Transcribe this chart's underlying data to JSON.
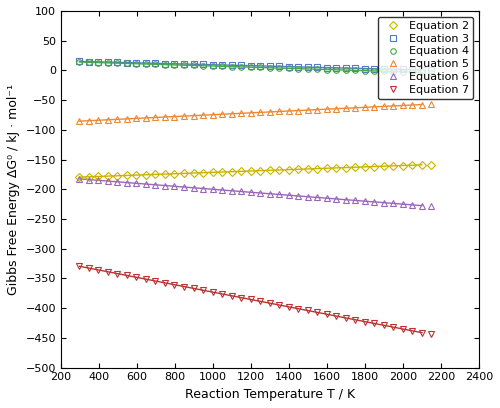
{
  "title": "",
  "xlabel": "Reaction Temperature T / K",
  "ylabel": "Gibbs Free Energy ΔG⁰ / kJ · mol⁻¹",
  "xlim": [
    200,
    2400
  ],
  "ylim": [
    -500,
    100
  ],
  "xticks": [
    200,
    400,
    600,
    800,
    1000,
    1200,
    1400,
    1600,
    1800,
    2000,
    2200,
    2400
  ],
  "yticks": [
    -500,
    -450,
    -400,
    -350,
    -300,
    -250,
    -200,
    -150,
    -100,
    -50,
    0,
    50,
    100
  ],
  "equations": [
    {
      "label": "Equation 2",
      "color": "#C8B400",
      "marker": "D",
      "line_color": "#C8B400",
      "slope": 0.0115,
      "intercept": -183
    },
    {
      "label": "Equation 3",
      "color": "#5577CC",
      "marker": "s",
      "line_color": "#5577CC",
      "slope": -0.008,
      "intercept": 17.5
    },
    {
      "label": "Equation 4",
      "color": "#44AA44",
      "marker": "o",
      "line_color": "#44AA44",
      "slope": -0.0097,
      "intercept": 17.0
    },
    {
      "label": "Equation 5",
      "color": "#EE8833",
      "marker": "^",
      "line_color": "#EE8833",
      "slope": 0.0155,
      "intercept": -90
    },
    {
      "label": "Equation 6",
      "color": "#9966BB",
      "marker": "^",
      "line_color": "#9966BB",
      "slope": -0.025,
      "intercept": -175
    },
    {
      "label": "Equation 7",
      "color": "#BB3333",
      "marker": "v",
      "line_color": "#BB3333",
      "slope": -0.062,
      "intercept": -311
    }
  ],
  "T_start": 298,
  "T_end": 2100,
  "T_step": 50,
  "figsize": [
    5.0,
    4.08
  ],
  "dpi": 100
}
